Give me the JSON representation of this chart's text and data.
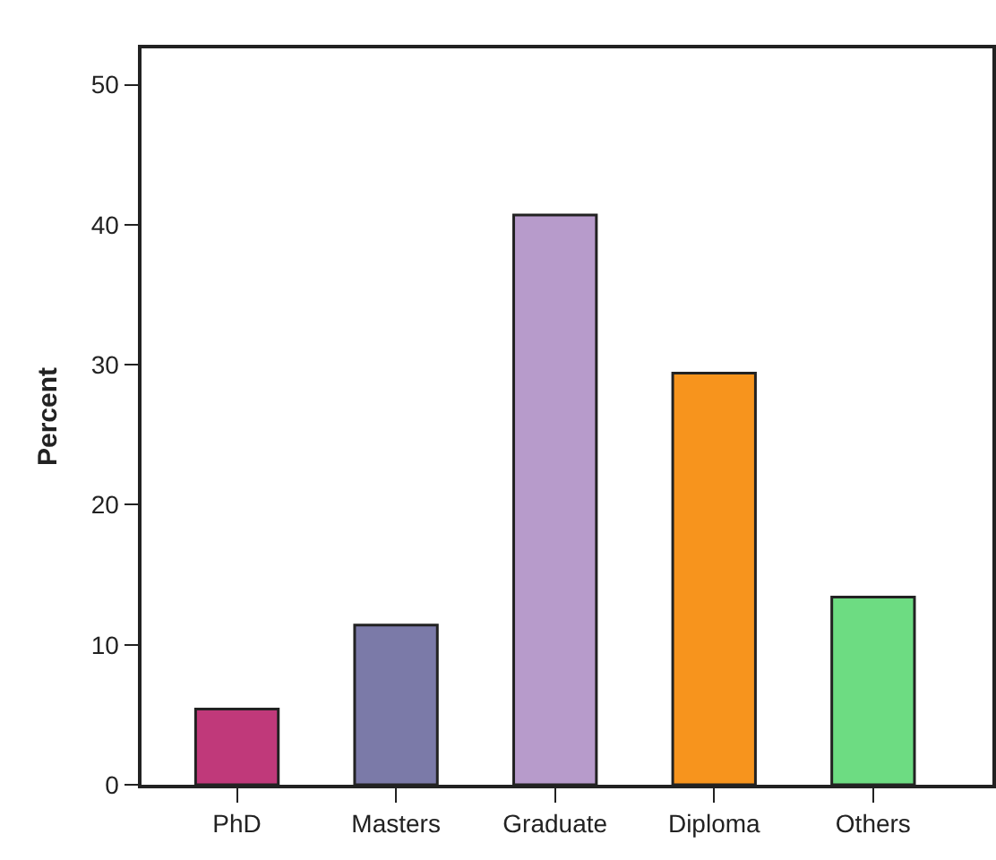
{
  "chart_data": {
    "type": "bar",
    "ylabel": "Percent",
    "categories": [
      "PhD",
      "Masters",
      "Graduate",
      "Diploma",
      "Others"
    ],
    "values": [
      5.4,
      11.4,
      40.7,
      29.4,
      13.4
    ],
    "colors": [
      "#c0397a",
      "#7b7aa8",
      "#b79bcb",
      "#f7941d",
      "#6ddc82"
    ],
    "ylim": [
      0,
      52.6
    ],
    "yticks": [
      0,
      10,
      20,
      30,
      40,
      50
    ]
  }
}
